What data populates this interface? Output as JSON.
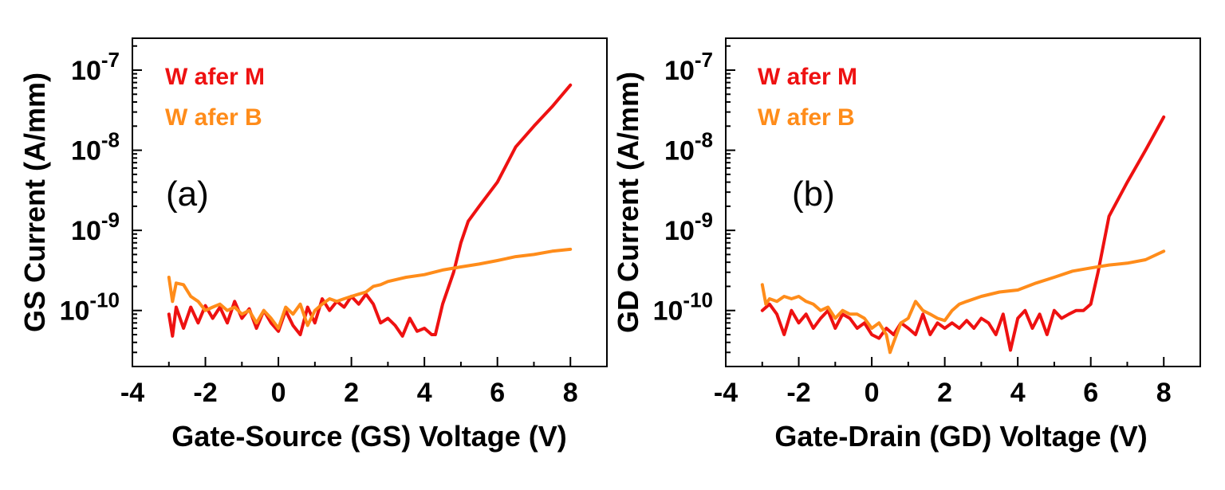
{
  "chart_data": [
    {
      "type": "line",
      "panel_label": "(a)",
      "xlabel": "Gate-Source (GS) Voltage (V)",
      "ylabel": "GS Current (A/mm)",
      "yscale": "log",
      "xlim": [
        -4,
        9
      ],
      "ylim": [
        2e-11,
        2.5e-07
      ],
      "xticks": [
        -4,
        -2,
        0,
        2,
        4,
        6,
        8
      ],
      "yticks": [
        {
          "mantissa": "10",
          "exp": "-10",
          "value": 1e-10
        },
        {
          "mantissa": "10",
          "exp": "-9",
          "value": 1e-09
        },
        {
          "mantissa": "10",
          "exp": "-8",
          "value": 1e-08
        },
        {
          "mantissa": "10",
          "exp": "-7",
          "value": 1e-07
        }
      ],
      "legend_position": "top-left",
      "series": [
        {
          "name": "W afer M",
          "color": "#ee1111",
          "x": [
            -3.0,
            -2.9,
            -2.8,
            -2.6,
            -2.4,
            -2.2,
            -2.0,
            -1.8,
            -1.6,
            -1.4,
            -1.2,
            -1.0,
            -0.8,
            -0.6,
            -0.4,
            -0.2,
            0.0,
            0.2,
            0.4,
            0.6,
            0.8,
            1.0,
            1.2,
            1.4,
            1.6,
            1.8,
            2.0,
            2.2,
            2.4,
            2.6,
            2.8,
            3.0,
            3.2,
            3.4,
            3.6,
            3.8,
            4.0,
            4.2,
            4.3,
            4.5,
            4.8,
            5.0,
            5.2,
            5.5,
            6.0,
            6.5,
            7.0,
            7.5,
            8.0
          ],
          "y": [
            9e-11,
            4.8e-11,
            1.1e-10,
            6e-11,
            1.1e-10,
            7e-11,
            1.15e-10,
            8e-11,
            1.1e-10,
            7e-11,
            1.3e-10,
            8e-11,
            1.05e-10,
            6e-11,
            1e-10,
            7e-11,
            5.5e-11,
            1e-10,
            6.5e-11,
            5e-11,
            1.1e-10,
            7e-11,
            1.4e-10,
            1e-10,
            1.3e-10,
            1.1e-10,
            1.5e-10,
            1.2e-10,
            1.6e-10,
            1.2e-10,
            7e-11,
            8e-11,
            6.5e-11,
            4.8e-11,
            8e-11,
            5.5e-11,
            6e-11,
            5e-11,
            5e-11,
            1.2e-10,
            3e-10,
            7e-10,
            1.3e-09,
            2e-09,
            4e-09,
            1.1e-08,
            2e-08,
            3.5e-08,
            6.5e-08
          ]
        },
        {
          "name": "W afer B",
          "color": "#ff8c1a",
          "x": [
            -3.0,
            -2.9,
            -2.8,
            -2.6,
            -2.4,
            -2.2,
            -2.0,
            -1.8,
            -1.6,
            -1.4,
            -1.2,
            -1.0,
            -0.8,
            -0.6,
            -0.4,
            -0.2,
            0.0,
            0.2,
            0.4,
            0.6,
            0.8,
            1.0,
            1.2,
            1.4,
            1.6,
            1.8,
            2.0,
            2.2,
            2.4,
            2.6,
            2.8,
            3.0,
            3.5,
            4.0,
            4.5,
            5.0,
            5.5,
            6.0,
            6.5,
            7.0,
            7.5,
            8.0
          ],
          "y": [
            2.6e-10,
            1.3e-10,
            2.2e-10,
            2.1e-10,
            1.5e-10,
            1.3e-10,
            1e-10,
            1.1e-10,
            1.2e-10,
            1e-10,
            1.1e-10,
            9e-11,
            1e-10,
            7e-11,
            1e-10,
            8e-11,
            6e-11,
            1.1e-10,
            9e-11,
            1.2e-10,
            6.5e-11,
            1e-10,
            1.2e-10,
            1.4e-10,
            1.3e-10,
            1.4e-10,
            1.5e-10,
            1.6e-10,
            1.7e-10,
            2e-10,
            2.1e-10,
            2.3e-10,
            2.6e-10,
            2.8e-10,
            3.2e-10,
            3.5e-10,
            3.8e-10,
            4.2e-10,
            4.7e-10,
            5e-10,
            5.5e-10,
            5.8e-10
          ]
        }
      ]
    },
    {
      "type": "line",
      "panel_label": "(b)",
      "xlabel": "Gate-Drain (GD) Voltage (V)",
      "ylabel": "GD Current (A/mm)",
      "yscale": "log",
      "xlim": [
        -4,
        9
      ],
      "ylim": [
        2e-11,
        2.5e-07
      ],
      "xticks": [
        -4,
        -2,
        0,
        2,
        4,
        6,
        8
      ],
      "yticks": [
        {
          "mantissa": "10",
          "exp": "-10",
          "value": 1e-10
        },
        {
          "mantissa": "10",
          "exp": "-9",
          "value": 1e-09
        },
        {
          "mantissa": "10",
          "exp": "-8",
          "value": 1e-08
        },
        {
          "mantissa": "10",
          "exp": "-7",
          "value": 1e-07
        }
      ],
      "legend_position": "top-left",
      "series": [
        {
          "name": "W afer M",
          "color": "#ee1111",
          "x": [
            -3.0,
            -2.8,
            -2.6,
            -2.4,
            -2.2,
            -2.0,
            -1.8,
            -1.6,
            -1.4,
            -1.2,
            -1.0,
            -0.8,
            -0.6,
            -0.4,
            -0.2,
            0.0,
            0.2,
            0.4,
            0.6,
            0.8,
            1.0,
            1.2,
            1.4,
            1.6,
            1.8,
            2.0,
            2.2,
            2.4,
            2.6,
            2.8,
            3.0,
            3.2,
            3.4,
            3.6,
            3.8,
            4.0,
            4.2,
            4.4,
            4.6,
            4.8,
            5.0,
            5.2,
            5.4,
            5.6,
            5.8,
            6.0,
            6.2,
            6.5,
            7.0,
            7.5,
            8.0
          ],
          "y": [
            1e-10,
            1.2e-10,
            9e-11,
            5e-11,
            1e-10,
            7e-11,
            9e-11,
            6e-11,
            8e-11,
            1e-10,
            6e-11,
            9e-11,
            8e-11,
            6e-11,
            7e-11,
            5e-11,
            4.5e-11,
            6e-11,
            5e-11,
            7e-11,
            6e-11,
            5e-11,
            9e-11,
            5e-11,
            7e-11,
            6e-11,
            7e-11,
            6e-11,
            7.5e-11,
            6e-11,
            8e-11,
            7e-11,
            5e-11,
            9e-11,
            3.2e-11,
            8e-11,
            1e-10,
            6e-11,
            9e-11,
            5e-11,
            1e-10,
            8e-11,
            9e-11,
            1e-10,
            1e-10,
            1.2e-10,
            3e-10,
            1.5e-09,
            4e-09,
            1e-08,
            2.6e-08
          ]
        },
        {
          "name": "W afer B",
          "color": "#ff8c1a",
          "x": [
            -3.0,
            -2.9,
            -2.8,
            -2.6,
            -2.4,
            -2.2,
            -2.0,
            -1.8,
            -1.6,
            -1.4,
            -1.2,
            -1.0,
            -0.8,
            -0.6,
            -0.4,
            -0.2,
            0.0,
            0.2,
            0.4,
            0.5,
            0.6,
            0.8,
            1.0,
            1.2,
            1.4,
            1.6,
            1.8,
            2.0,
            2.2,
            2.4,
            2.6,
            3.0,
            3.5,
            4.0,
            4.5,
            5.0,
            5.5,
            6.0,
            6.5,
            7.0,
            7.5,
            8.0
          ],
          "y": [
            2.1e-10,
            1.2e-10,
            1.4e-10,
            1.3e-10,
            1.5e-10,
            1.4e-10,
            1.5e-10,
            1.3e-10,
            1.2e-10,
            1e-10,
            1.1e-10,
            8e-11,
            1e-10,
            9e-11,
            9e-11,
            8e-11,
            6e-11,
            7e-11,
            5e-11,
            3e-11,
            4e-11,
            7e-11,
            8e-11,
            1.3e-10,
            1e-10,
            9e-11,
            8e-11,
            7.5e-11,
            1e-10,
            1.2e-10,
            1.3e-10,
            1.5e-10,
            1.7e-10,
            1.8e-10,
            2.2e-10,
            2.6e-10,
            3.1e-10,
            3.4e-10,
            3.7e-10,
            3.9e-10,
            4.3e-10,
            5.5e-10
          ]
        }
      ]
    }
  ]
}
